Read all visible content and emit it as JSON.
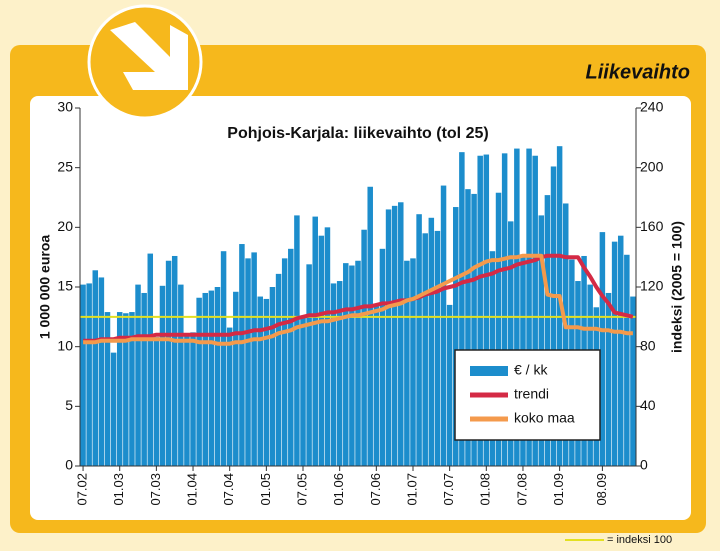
{
  "header": {
    "title": "Liikevaihto"
  },
  "chart_data": {
    "type": "bar",
    "title": "Pohjois-Karjala: liikevaihto (tol 25)",
    "ylabel": "1 000 000 euroa",
    "y2label": "indeksi (2005 = 100)",
    "categories": [
      "07.02",
      null,
      null,
      null,
      null,
      null,
      "01.03",
      null,
      null,
      null,
      null,
      null,
      "07.03",
      null,
      null,
      null,
      null,
      null,
      "01.04",
      null,
      null,
      null,
      null,
      null,
      "07.04",
      null,
      null,
      null,
      null,
      null,
      "01.05",
      null,
      null,
      null,
      null,
      null,
      "07.05",
      null,
      null,
      null,
      null,
      null,
      "01.06",
      null,
      null,
      null,
      null,
      null,
      "07.06",
      null,
      null,
      null,
      null,
      null,
      "01.07",
      null,
      null,
      null,
      null,
      null,
      "07.07",
      null,
      null,
      null,
      null,
      null,
      "01.08",
      null,
      null,
      null,
      null,
      null,
      "07.08",
      null,
      null,
      null,
      null,
      null,
      "01.09",
      null,
      null,
      null,
      null,
      null,
      null,
      "08.09",
      null,
      null,
      null,
      null,
      null
    ],
    "series": [
      {
        "name": "€ / kk",
        "type": "bar",
        "color": "#1c8dcc",
        "values": [
          15.2,
          15.3,
          16.4,
          15.8,
          12.9,
          9.5,
          12.9,
          12.8,
          12.9,
          15.2,
          14.5,
          17.8,
          10.8,
          15.1,
          17.2,
          17.6,
          15.2,
          11.0,
          11.2,
          14.1,
          14.5,
          14.7,
          15.0,
          18.0,
          11.6,
          14.6,
          18.6,
          17.4,
          17.9,
          14.2,
          14.0,
          15.0,
          16.1,
          17.4,
          18.2,
          21.0,
          12.5,
          16.9,
          20.9,
          19.3,
          20.0,
          15.3,
          15.5,
          17.0,
          16.8,
          17.2,
          19.8,
          23.4,
          13.4,
          18.2,
          21.5,
          21.8,
          22.1,
          17.2,
          17.4,
          21.1,
          19.5,
          20.8,
          19.7,
          23.5,
          13.5,
          21.7,
          26.3,
          23.2,
          22.8,
          26.0,
          26.1,
          18.0,
          22.9,
          26.2,
          20.5,
          26.6,
          17.5,
          26.6,
          26.0,
          21.0,
          22.7,
          25.1,
          26.8,
          22.0,
          17.3,
          15.5,
          17.6,
          15.2,
          13.3,
          19.6,
          14.5,
          18.8,
          19.3,
          17.7,
          14.2
        ]
      },
      {
        "name": "trendi",
        "type": "line",
        "axis": "y2",
        "color": "#d42a45",
        "values": [
          84,
          84,
          84,
          85,
          85,
          85,
          86,
          86,
          86,
          87,
          87,
          87,
          88,
          88,
          88,
          88,
          88,
          88,
          88,
          88,
          88,
          88,
          88,
          88,
          88,
          89,
          89,
          90,
          91,
          91,
          92,
          93,
          95,
          96,
          97,
          99,
          100,
          101,
          101,
          102,
          103,
          103,
          104,
          105,
          105,
          106,
          107,
          107,
          108,
          109,
          109,
          110,
          111,
          111,
          112,
          113,
          115,
          116,
          117,
          119,
          120,
          121,
          123,
          124,
          125,
          127,
          128,
          129,
          131,
          132,
          133,
          135,
          136,
          137,
          138,
          140,
          141,
          141,
          141,
          140,
          140,
          140,
          133,
          127,
          120,
          114,
          109,
          103,
          102,
          101,
          100
        ]
      },
      {
        "name": "koko maa",
        "type": "line",
        "axis": "y2",
        "color": "#f49a4c",
        "values": [
          83,
          83,
          83,
          84,
          84,
          84,
          84,
          84,
          85,
          85,
          85,
          85,
          85,
          85,
          85,
          84,
          84,
          84,
          84,
          83,
          83,
          83,
          82,
          82,
          82,
          83,
          83,
          84,
          85,
          85,
          86,
          87,
          89,
          90,
          91,
          93,
          94,
          95,
          96,
          97,
          97,
          98,
          99,
          100,
          101,
          101,
          102,
          103,
          104,
          105,
          107,
          108,
          109,
          111,
          112,
          114,
          116,
          118,
          120,
          122,
          124,
          126,
          128,
          130,
          133,
          135,
          137,
          138,
          138,
          139,
          140,
          140,
          141,
          141,
          141,
          141,
          115,
          114,
          114,
          93,
          93,
          93,
          92,
          92,
          92,
          91,
          91,
          90,
          90,
          89,
          89
        ]
      }
    ],
    "reference_line": {
      "value": 100,
      "axis": "y2",
      "label": "= indeksi 100",
      "color": "#e3e021"
    },
    "ylim": [
      0,
      30
    ],
    "yticks": [
      0,
      5,
      10,
      15,
      20,
      25,
      30
    ],
    "y2lim": [
      0,
      240
    ],
    "y2ticks": [
      0,
      40,
      80,
      120,
      160,
      200,
      240
    ],
    "legend": "lower-right"
  }
}
